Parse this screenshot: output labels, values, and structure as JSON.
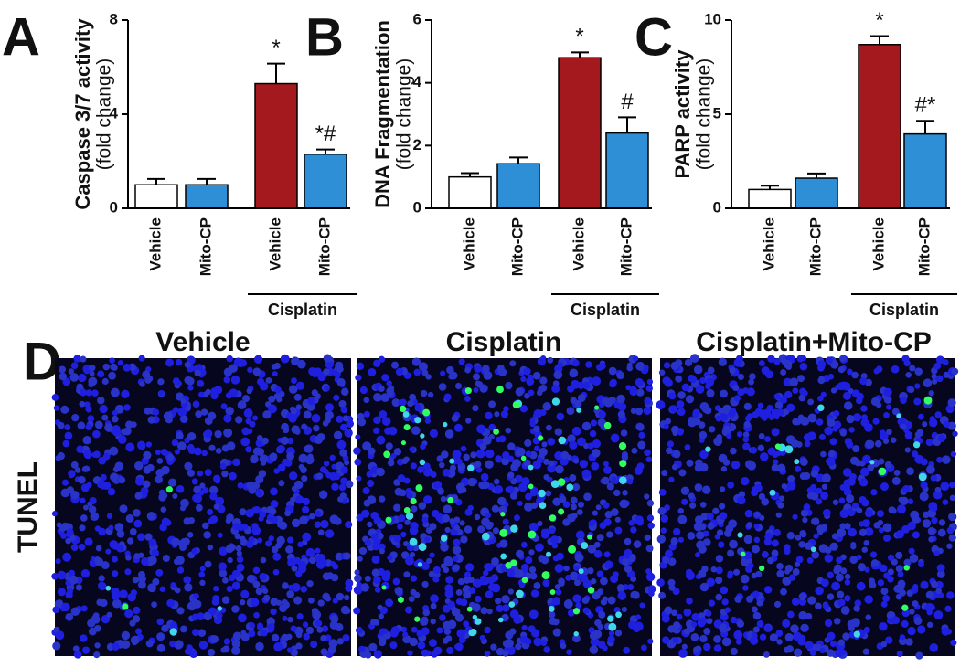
{
  "chart_data": [
    {
      "type": "bar",
      "panel": "A",
      "ylabel": "Caspase 3/7 activity",
      "ylabel_unit": "(fold change)",
      "categories": [
        "Vehicle",
        "Mito-CP",
        "Vehicle",
        "Mito-CP"
      ],
      "groups": [
        null,
        null,
        "Cisplatin",
        "Cisplatin"
      ],
      "values": [
        1.0,
        1.0,
        5.3,
        2.3
      ],
      "errors": [
        0.25,
        0.25,
        0.85,
        0.2
      ],
      "colors": [
        "#ffffff",
        "#2e8fd6",
        "#a3191e",
        "#2e8fd6"
      ],
      "annotations": [
        null,
        null,
        "*",
        "*#"
      ],
      "ylim": [
        0,
        8
      ],
      "yticks": [
        0,
        4,
        8
      ]
    },
    {
      "type": "bar",
      "panel": "B",
      "ylabel": "DNA Fragmentation",
      "ylabel_unit": "(fold change)",
      "categories": [
        "Vehicle",
        "Mito-CP",
        "Vehicle",
        "Mito-CP"
      ],
      "groups": [
        null,
        null,
        "Cisplatin",
        "Cisplatin"
      ],
      "values": [
        1.0,
        1.42,
        4.8,
        2.4
      ],
      "errors": [
        0.12,
        0.2,
        0.17,
        0.5
      ],
      "colors": [
        "#ffffff",
        "#2e8fd6",
        "#a3191e",
        "#2e8fd6"
      ],
      "annotations": [
        null,
        null,
        "*",
        "#"
      ],
      "ylim": [
        0,
        6
      ],
      "yticks": [
        0,
        2,
        4,
        6
      ]
    },
    {
      "type": "bar",
      "panel": "C",
      "ylabel": "PARP activity",
      "ylabel_unit": "(fold change)",
      "categories": [
        "Vehicle",
        "Mito-CP",
        "Vehicle",
        "Mito-CP"
      ],
      "groups": [
        null,
        null,
        "Cisplatin",
        "Cisplatin"
      ],
      "values": [
        1.0,
        1.6,
        8.7,
        3.95
      ],
      "errors": [
        0.2,
        0.25,
        0.45,
        0.7
      ],
      "colors": [
        "#ffffff",
        "#2e8fd6",
        "#a3191e",
        "#2e8fd6"
      ],
      "annotations": [
        null,
        null,
        "*",
        "#*"
      ],
      "ylim": [
        0,
        10
      ],
      "yticks": [
        0,
        5,
        10
      ]
    }
  ],
  "panel_d": {
    "panel": "D",
    "row_label": "TUNEL",
    "titles": [
      "Vehicle",
      "Cisplatin",
      "Cisplatin+Mito-CP"
    ]
  }
}
